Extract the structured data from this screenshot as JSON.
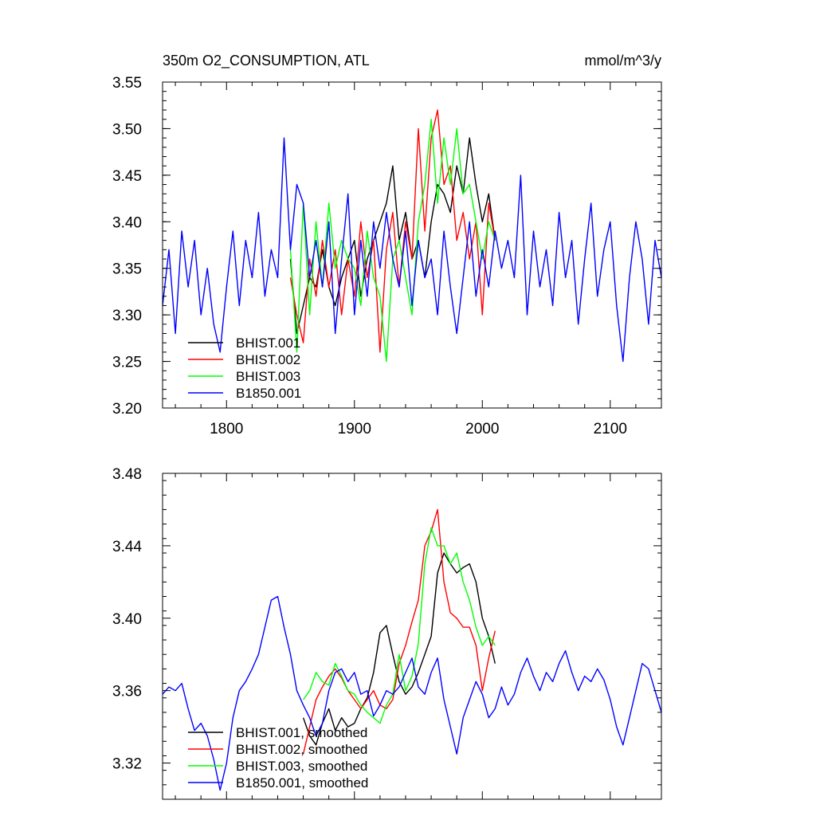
{
  "chart_data": [
    {
      "type": "line",
      "title": "350m O2_CONSUMPTION, ATL",
      "units": "mmol/m^3/y",
      "xlim": [
        1750,
        2140
      ],
      "ylim": [
        3.2,
        3.55
      ],
      "x_ticks": [
        1800,
        1900,
        2000,
        2100
      ],
      "x_tick_labels": [
        "1800",
        "1900",
        "2000",
        "2100"
      ],
      "y_ticks": [
        3.2,
        3.25,
        3.3,
        3.35,
        3.4,
        3.45,
        3.5,
        3.55
      ],
      "y_tick_labels": [
        "3.20",
        "3.25",
        "3.30",
        "3.35",
        "3.40",
        "3.45",
        "3.50",
        "3.55"
      ],
      "legend": "bottom-left",
      "series": [
        {
          "name": "BHIST.001",
          "color": "#000000",
          "x": [
            1850,
            1855,
            1860,
            1865,
            1870,
            1875,
            1880,
            1885,
            1890,
            1895,
            1900,
            1905,
            1910,
            1915,
            1920,
            1925,
            1930,
            1935,
            1940,
            1945,
            1950,
            1955,
            1960,
            1965,
            1970,
            1975,
            1980,
            1985,
            1990,
            1995,
            2000,
            2005,
            2010
          ],
          "y": [
            3.36,
            3.28,
            3.31,
            3.34,
            3.33,
            3.37,
            3.33,
            3.31,
            3.34,
            3.36,
            3.38,
            3.32,
            3.36,
            3.38,
            3.4,
            3.42,
            3.46,
            3.38,
            3.41,
            3.36,
            3.38,
            3.34,
            3.4,
            3.44,
            3.43,
            3.41,
            3.46,
            3.43,
            3.49,
            3.44,
            3.4,
            3.43,
            3.38
          ]
        },
        {
          "name": "BHIST.002",
          "color": "#ff0000",
          "x": [
            1850,
            1855,
            1860,
            1865,
            1870,
            1875,
            1880,
            1885,
            1890,
            1895,
            1900,
            1905,
            1910,
            1915,
            1920,
            1925,
            1930,
            1935,
            1940,
            1945,
            1950,
            1955,
            1960,
            1965,
            1970,
            1975,
            1980,
            1985,
            1990,
            1995,
            2000,
            2005,
            2010
          ],
          "y": [
            3.34,
            3.3,
            3.27,
            3.36,
            3.32,
            3.38,
            3.33,
            3.37,
            3.3,
            3.36,
            3.32,
            3.4,
            3.34,
            3.38,
            3.26,
            3.37,
            3.41,
            3.33,
            3.4,
            3.36,
            3.5,
            3.39,
            3.49,
            3.52,
            3.44,
            3.46,
            3.38,
            3.41,
            3.36,
            3.4,
            3.3,
            3.42,
            3.38
          ]
        },
        {
          "name": "BHIST.003",
          "color": "#00ff00",
          "x": [
            1850,
            1855,
            1860,
            1865,
            1870,
            1875,
            1880,
            1885,
            1890,
            1895,
            1900,
            1905,
            1910,
            1915,
            1920,
            1925,
            1930,
            1935,
            1940,
            1945,
            1950,
            1955,
            1960,
            1965,
            1970,
            1975,
            1980,
            1985,
            1990,
            1995,
            2000,
            2005,
            2010
          ],
          "y": [
            3.37,
            3.26,
            3.42,
            3.3,
            3.4,
            3.33,
            3.42,
            3.35,
            3.38,
            3.36,
            3.35,
            3.31,
            3.39,
            3.34,
            3.32,
            3.25,
            3.36,
            3.38,
            3.34,
            3.3,
            3.4,
            3.44,
            3.51,
            3.42,
            3.49,
            3.44,
            3.5,
            3.43,
            3.44,
            3.4,
            3.36,
            3.4,
            3.38
          ]
        },
        {
          "name": "B1850.001",
          "color": "#0000ff",
          "x": [
            1750,
            1755,
            1760,
            1765,
            1770,
            1775,
            1780,
            1785,
            1790,
            1795,
            1800,
            1805,
            1810,
            1815,
            1820,
            1825,
            1830,
            1835,
            1840,
            1845,
            1850,
            1855,
            1860,
            1865,
            1870,
            1875,
            1880,
            1885,
            1890,
            1895,
            1900,
            1905,
            1910,
            1915,
            1920,
            1925,
            1930,
            1935,
            1940,
            1945,
            1950,
            1955,
            1960,
            1965,
            1970,
            1975,
            1980,
            1985,
            1990,
            1995,
            2000,
            2005,
            2010,
            2015,
            2020,
            2025,
            2030,
            2035,
            2040,
            2045,
            2050,
            2055,
            2060,
            2065,
            2070,
            2075,
            2080,
            2085,
            2090,
            2095,
            2100,
            2105,
            2110,
            2115,
            2120,
            2125,
            2130,
            2135,
            2140
          ],
          "y": [
            3.31,
            3.37,
            3.28,
            3.39,
            3.33,
            3.38,
            3.3,
            3.35,
            3.29,
            3.26,
            3.33,
            3.39,
            3.31,
            3.38,
            3.34,
            3.41,
            3.32,
            3.37,
            3.34,
            3.49,
            3.37,
            3.44,
            3.42,
            3.34,
            3.38,
            3.33,
            3.4,
            3.28,
            3.36,
            3.43,
            3.3,
            3.38,
            3.32,
            3.4,
            3.35,
            3.41,
            3.36,
            3.33,
            3.39,
            3.31,
            3.38,
            3.34,
            3.36,
            3.3,
            3.39,
            3.33,
            3.28,
            3.34,
            3.4,
            3.32,
            3.37,
            3.33,
            3.39,
            3.35,
            3.38,
            3.34,
            3.45,
            3.3,
            3.39,
            3.33,
            3.37,
            3.31,
            3.41,
            3.34,
            3.38,
            3.29,
            3.36,
            3.42,
            3.32,
            3.37,
            3.4,
            3.31,
            3.25,
            3.34,
            3.4,
            3.36,
            3.29,
            3.38,
            3.34
          ]
        }
      ]
    },
    {
      "type": "line",
      "xlim": [
        1750,
        2140
      ],
      "ylim": [
        3.3,
        3.48
      ],
      "x_ticks": [
        1800,
        1900,
        2000,
        2100
      ],
      "y_ticks": [
        3.32,
        3.36,
        3.4,
        3.44,
        3.48
      ],
      "y_tick_labels": [
        "3.32",
        "3.36",
        "3.40",
        "3.44",
        "3.48"
      ],
      "legend": "bottom-left",
      "series": [
        {
          "name": "BHIST.001, smoothed",
          "color": "#000000",
          "x": [
            1860,
            1865,
            1870,
            1875,
            1880,
            1885,
            1890,
            1895,
            1900,
            1905,
            1910,
            1915,
            1920,
            1925,
            1930,
            1935,
            1940,
            1945,
            1950,
            1955,
            1960,
            1965,
            1970,
            1975,
            1980,
            1985,
            1990,
            1995,
            2000,
            2005,
            2010
          ],
          "y": [
            3.345,
            3.335,
            3.33,
            3.342,
            3.35,
            3.338,
            3.345,
            3.34,
            3.342,
            3.35,
            3.356,
            3.37,
            3.392,
            3.396,
            3.38,
            3.365,
            3.358,
            3.362,
            3.37,
            3.38,
            3.39,
            3.425,
            3.436,
            3.43,
            3.425,
            3.428,
            3.43,
            3.42,
            3.4,
            3.39,
            3.375
          ]
        },
        {
          "name": "BHIST.002, smoothed",
          "color": "#ff0000",
          "x": [
            1860,
            1865,
            1870,
            1875,
            1880,
            1885,
            1890,
            1895,
            1900,
            1905,
            1910,
            1915,
            1920,
            1925,
            1930,
            1935,
            1940,
            1945,
            1950,
            1955,
            1960,
            1965,
            1970,
            1975,
            1980,
            1985,
            1990,
            1995,
            2000,
            2005,
            2010
          ],
          "y": [
            3.325,
            3.34,
            3.355,
            3.362,
            3.368,
            3.372,
            3.367,
            3.36,
            3.355,
            3.35,
            3.355,
            3.36,
            3.352,
            3.35,
            3.355,
            3.375,
            3.385,
            3.398,
            3.41,
            3.44,
            3.448,
            3.46,
            3.42,
            3.403,
            3.4,
            3.395,
            3.395,
            3.385,
            3.36,
            3.378,
            3.393
          ]
        },
        {
          "name": "BHIST.003, smoothed",
          "color": "#00ff00",
          "x": [
            1860,
            1865,
            1870,
            1875,
            1880,
            1885,
            1890,
            1895,
            1900,
            1905,
            1910,
            1915,
            1920,
            1925,
            1930,
            1935,
            1940,
            1945,
            1950,
            1955,
            1960,
            1965,
            1970,
            1975,
            1980,
            1985,
            1990,
            1995,
            2000,
            2005,
            2010
          ],
          "y": [
            3.355,
            3.36,
            3.37,
            3.365,
            3.363,
            3.375,
            3.368,
            3.36,
            3.358,
            3.352,
            3.348,
            3.345,
            3.342,
            3.352,
            3.358,
            3.38,
            3.36,
            3.368,
            3.386,
            3.43,
            3.45,
            3.44,
            3.44,
            3.43,
            3.436,
            3.42,
            3.41,
            3.395,
            3.385,
            3.39,
            3.385
          ]
        },
        {
          "name": "B1850.001, smoothed",
          "color": "#0000ff",
          "x": [
            1750,
            1755,
            1760,
            1765,
            1770,
            1775,
            1780,
            1785,
            1790,
            1795,
            1800,
            1805,
            1810,
            1815,
            1820,
            1825,
            1830,
            1835,
            1840,
            1845,
            1850,
            1855,
            1860,
            1865,
            1870,
            1875,
            1880,
            1885,
            1890,
            1895,
            1900,
            1905,
            1910,
            1915,
            1920,
            1925,
            1930,
            1935,
            1940,
            1945,
            1950,
            1955,
            1960,
            1965,
            1970,
            1975,
            1980,
            1985,
            1990,
            1995,
            2000,
            2005,
            2010,
            2015,
            2020,
            2025,
            2030,
            2035,
            2040,
            2045,
            2050,
            2055,
            2060,
            2065,
            2070,
            2075,
            2080,
            2085,
            2090,
            2095,
            2100,
            2105,
            2110,
            2115,
            2120,
            2125,
            2130,
            2135,
            2140
          ],
          "y": [
            3.358,
            3.362,
            3.36,
            3.364,
            3.35,
            3.338,
            3.342,
            3.335,
            3.322,
            3.305,
            3.32,
            3.345,
            3.36,
            3.365,
            3.372,
            3.38,
            3.395,
            3.41,
            3.412,
            3.395,
            3.38,
            3.36,
            3.352,
            3.345,
            3.335,
            3.342,
            3.36,
            3.37,
            3.372,
            3.365,
            3.37,
            3.358,
            3.36,
            3.346,
            3.352,
            3.36,
            3.358,
            3.362,
            3.37,
            3.378,
            3.362,
            3.358,
            3.37,
            3.378,
            3.355,
            3.34,
            3.325,
            3.345,
            3.355,
            3.365,
            3.358,
            3.345,
            3.35,
            3.362,
            3.352,
            3.358,
            3.37,
            3.378,
            3.368,
            3.36,
            3.37,
            3.365,
            3.375,
            3.382,
            3.37,
            3.36,
            3.368,
            3.365,
            3.372,
            3.366,
            3.355,
            3.34,
            3.33,
            3.345,
            3.36,
            3.375,
            3.372,
            3.36,
            3.348
          ]
        }
      ]
    }
  ]
}
